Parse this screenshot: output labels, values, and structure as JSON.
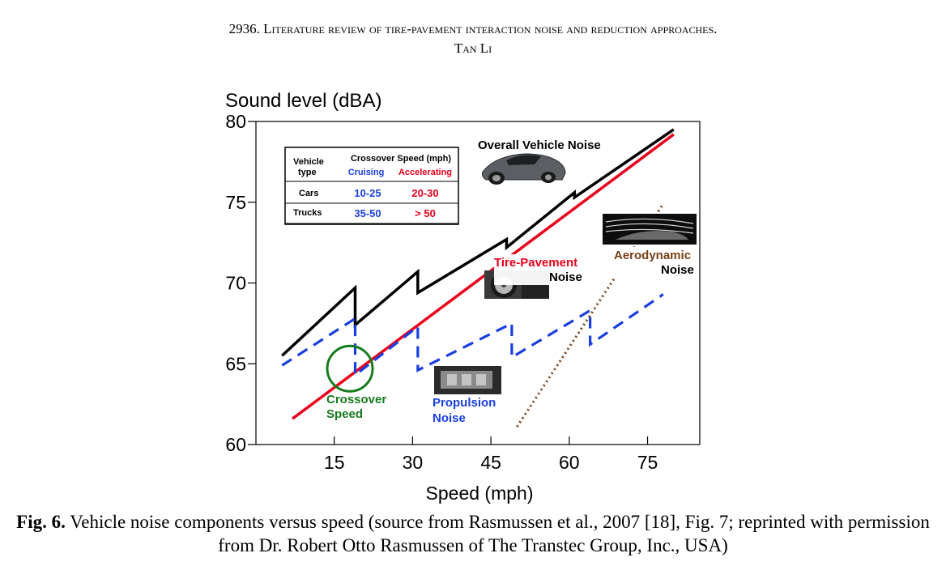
{
  "header": {
    "line1": "2936. Literature review of tire-pavement interaction noise and reduction approaches.",
    "line2": "Tan Li"
  },
  "caption": {
    "label": "Fig. 6.",
    "text": "Vehicle noise components versus speed (source from Rasmussen et al., 2007 [18], Fig. 7; reprinted with permission from Dr. Robert Otto Rasmussen of The Transtec Group, Inc., USA)"
  },
  "chart_data": {
    "type": "line",
    "ylabel": "Sound level (dBA)",
    "xlabel": "Speed (mph)",
    "xlim": [
      0,
      85
    ],
    "ylim": [
      60,
      80
    ],
    "xticks": [
      15,
      30,
      45,
      60,
      75
    ],
    "yticks": [
      60,
      65,
      70,
      75,
      80
    ],
    "grid": false,
    "colors": {
      "overall": "#000000",
      "tire": "#e8001c",
      "propulsion": "#1a3fe0",
      "aero": "#7a3f16",
      "crossover": "#177a1e"
    },
    "series": [
      {
        "key": "overall",
        "name": "Overall Vehicle Noise",
        "style": "solid",
        "x": [
          5,
          19,
          19,
          31,
          31,
          48,
          48,
          61,
          61,
          80
        ],
        "y": [
          65.5,
          69.7,
          67.4,
          70.7,
          69.4,
          72.7,
          72.2,
          75.6,
          75.3,
          79.5
        ]
      },
      {
        "key": "tire",
        "name": "Tire-Pavement Noise",
        "style": "solid",
        "x": [
          7,
          80
        ],
        "y": [
          61.6,
          79.2
        ]
      },
      {
        "key": "propulsion",
        "name": "Propulsion Noise",
        "style": "dashed",
        "x": [
          5,
          19,
          19,
          31,
          31,
          49,
          49,
          64,
          64,
          78
        ],
        "y": [
          64.9,
          67.8,
          64.3,
          67.3,
          64.6,
          67.5,
          65.4,
          68.3,
          66.2,
          69.3
        ]
      },
      {
        "key": "aero",
        "name": "Aerodynamic Noise",
        "style": "dotted",
        "x": [
          50,
          78
        ],
        "y": [
          61.1,
          74.9
        ]
      }
    ],
    "annotations": {
      "overall_label": "Overall Vehicle Noise",
      "tire_label_1": "Tire-Pavement",
      "tire_label_2": "Noise",
      "aero_label_1": "Aerodynamic",
      "aero_label_2": "Noise",
      "prop_label_1": "Propulsion",
      "prop_label_2": "Noise",
      "cross_label_1": "Crossover",
      "cross_label_2": "Speed",
      "crossover_point": {
        "x": 18,
        "y": 64.7
      }
    },
    "table": {
      "head_vehicle_1": "Vehicle",
      "head_vehicle_2": "type",
      "head_crossover": "Crossover Speed (mph)",
      "head_cruising": "Cruising",
      "head_accelerating": "Accelerating",
      "rows": [
        {
          "type": "Cars",
          "cruising": "10-25",
          "accelerating": "20-30"
        },
        {
          "type": "Trucks",
          "cruising": "35-50",
          "accelerating": "> 50"
        }
      ]
    },
    "images": [
      {
        "name": "car",
        "desc": "car-photo"
      },
      {
        "name": "wheel",
        "desc": "tire-photo"
      },
      {
        "name": "aero",
        "desc": "wind-tunnel-photo"
      },
      {
        "name": "engine",
        "desc": "engine-photo"
      }
    ]
  }
}
